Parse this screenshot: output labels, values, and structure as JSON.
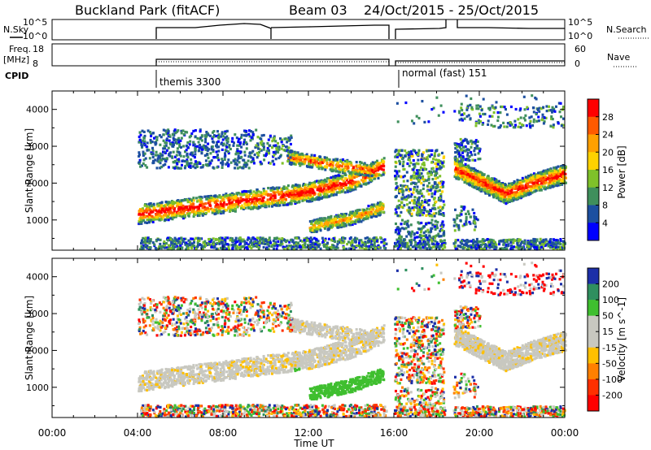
{
  "header": {
    "station": "Buckland Park (fitACF)",
    "beam": "Beam 03",
    "date_range": "24/Oct/2015 - 25/Oct/2015"
  },
  "left_labels": {
    "nsky": "N.Sky",
    "nsky_ticks": [
      "10^5",
      "10^0"
    ],
    "freq": "Freq.",
    "freq_unit": "[MHz]",
    "freq_ticks": [
      "18",
      "8"
    ],
    "cpid": "CPID"
  },
  "right_labels": {
    "nsearch": "N.Search",
    "nsearch_ticks": [
      "10^5",
      "10^0"
    ],
    "nave": "Nave",
    "nave_ticks": [
      "60",
      "0"
    ]
  },
  "cpid_segments": [
    "themis 3300",
    "normal (fast) 151"
  ],
  "chart_data": [
    {
      "type": "heatmap",
      "name": "power",
      "ylabel": "Slant Range [km]",
      "y_ticks": [
        1000,
        2000,
        3000,
        4000
      ],
      "ylim": [
        180,
        4500
      ],
      "xlim": [
        0,
        24
      ],
      "colorbar": {
        "label": "Power [dB]",
        "ticks": [
          "28",
          "24",
          "20",
          "16",
          "12",
          "8",
          "4"
        ],
        "colors": [
          "#ff0000",
          "#ff5a00",
          "#ffa000",
          "#ffd200",
          "#7fc12a",
          "#3f8f5c",
          "#1c4fa0",
          "#0000ff"
        ]
      },
      "features": [
        {
          "desc": "main echo band",
          "t": [
            4,
            6,
            8,
            10,
            12,
            14,
            15.5
          ],
          "range": [
            1150,
            1300,
            1450,
            1600,
            1750,
            2050,
            2450
          ]
        },
        {
          "desc": "upper band",
          "t": [
            11,
            13,
            15
          ],
          "range": [
            2700,
            2500,
            2350
          ]
        },
        {
          "desc": "lower band",
          "t": [
            12,
            14,
            15.5
          ],
          "range": [
            800,
            1050,
            1350
          ]
        },
        {
          "desc": "late V-shaped band",
          "t": [
            18.8,
            20,
            21.2,
            22.5,
            24
          ],
          "range": [
            2400,
            2050,
            1700,
            2000,
            2250
          ]
        }
      ]
    },
    {
      "type": "heatmap",
      "name": "velocity",
      "ylabel": "Slant Range [km]",
      "y_ticks": [
        1000,
        2000,
        3000,
        4000
      ],
      "ylim": [
        180,
        4500
      ],
      "xlim": [
        0,
        24
      ],
      "x_ticks": [
        "00:00",
        "04:00",
        "08:00",
        "12:00",
        "16:00",
        "20:00",
        "00:00"
      ],
      "xlabel": "Time UT",
      "colorbar": {
        "label": "Velocity [m s^-1]",
        "ticks": [
          "200",
          "100",
          "50",
          "15",
          "-15",
          "-50",
          "-100",
          "-200"
        ],
        "colors": [
          "#1c2fa8",
          "#2f8f5f",
          "#3fbf2f",
          "#c8c8c0",
          "#c8c8c0",
          "#ffc000",
          "#ff8000",
          "#ff3000",
          "#ff0000"
        ]
      }
    }
  ],
  "colors": {
    "gray": "#c8c8c0",
    "frame": "#000000"
  }
}
